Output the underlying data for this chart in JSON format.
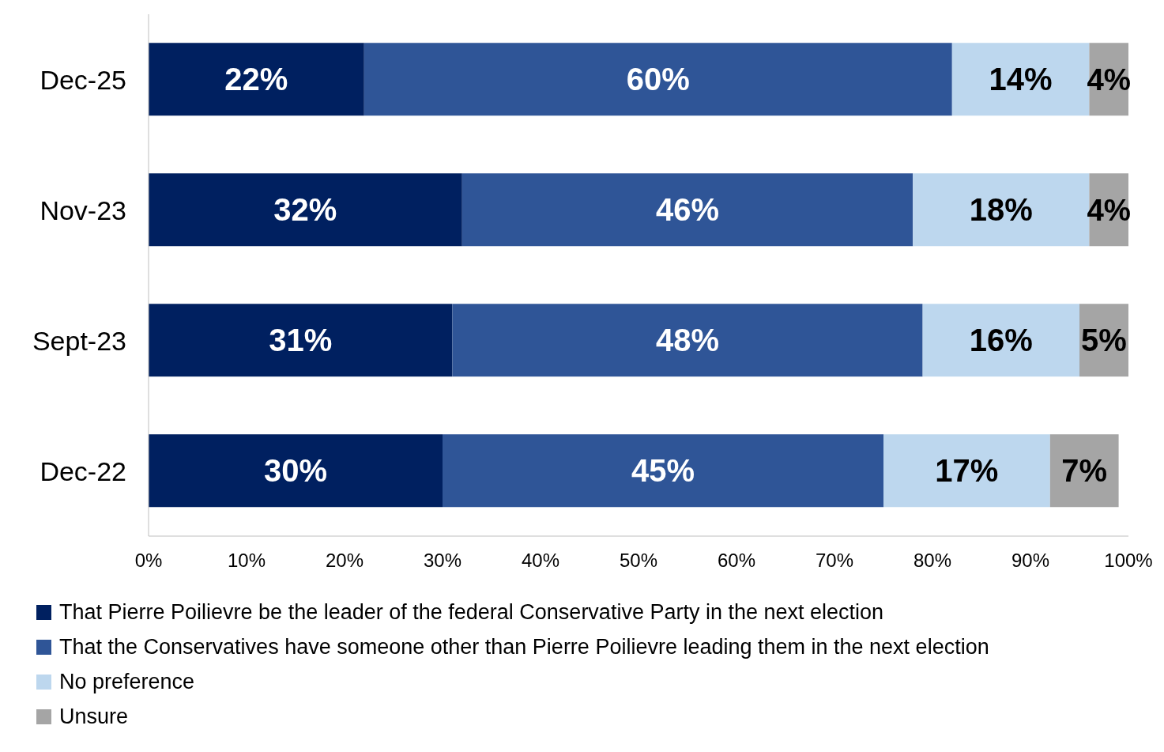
{
  "chart_data": {
    "type": "bar",
    "orientation": "horizontal",
    "stacked": true,
    "categories": [
      "Dec-25",
      "Nov-23",
      "Sept-23",
      "Dec-22"
    ],
    "series": [
      {
        "name": "That Pierre Poilievre be the leader of the federal Conservative Party in the next election",
        "color": "#002060",
        "values": [
          22,
          32,
          31,
          30
        ],
        "value_labels": [
          "22%",
          "32%",
          "31%",
          "30%"
        ]
      },
      {
        "name": "That the Conservatives have someone other than Pierre Poilievre leading them in the next election",
        "color": "#2f5597",
        "values": [
          60,
          46,
          48,
          45
        ],
        "value_labels": [
          "60%",
          "46%",
          "48%",
          "45%"
        ]
      },
      {
        "name": "No preference",
        "color": "#bdd7ee",
        "values": [
          14,
          18,
          16,
          17
        ],
        "value_labels": [
          "14%",
          "18%",
          "16%",
          "17%"
        ]
      },
      {
        "name": "Unsure",
        "color": "#a5a5a5",
        "values": [
          4,
          4,
          5,
          7
        ],
        "value_labels": [
          "4%",
          "4%",
          "5%",
          "7%"
        ]
      }
    ],
    "xlim": [
      0,
      100
    ],
    "xticks": [
      {
        "value": 0,
        "label": "0%"
      },
      {
        "value": 10,
        "label": "10%"
      },
      {
        "value": 20,
        "label": "20%"
      },
      {
        "value": 30,
        "label": "30%"
      },
      {
        "value": 40,
        "label": "40%"
      },
      {
        "value": 50,
        "label": "50%"
      },
      {
        "value": 60,
        "label": "60%"
      },
      {
        "value": 70,
        "label": "70%"
      },
      {
        "value": 80,
        "label": "80%"
      },
      {
        "value": 90,
        "label": "90%"
      },
      {
        "value": 100,
        "label": "100%"
      }
    ],
    "grid": false,
    "legend": "bottom"
  }
}
